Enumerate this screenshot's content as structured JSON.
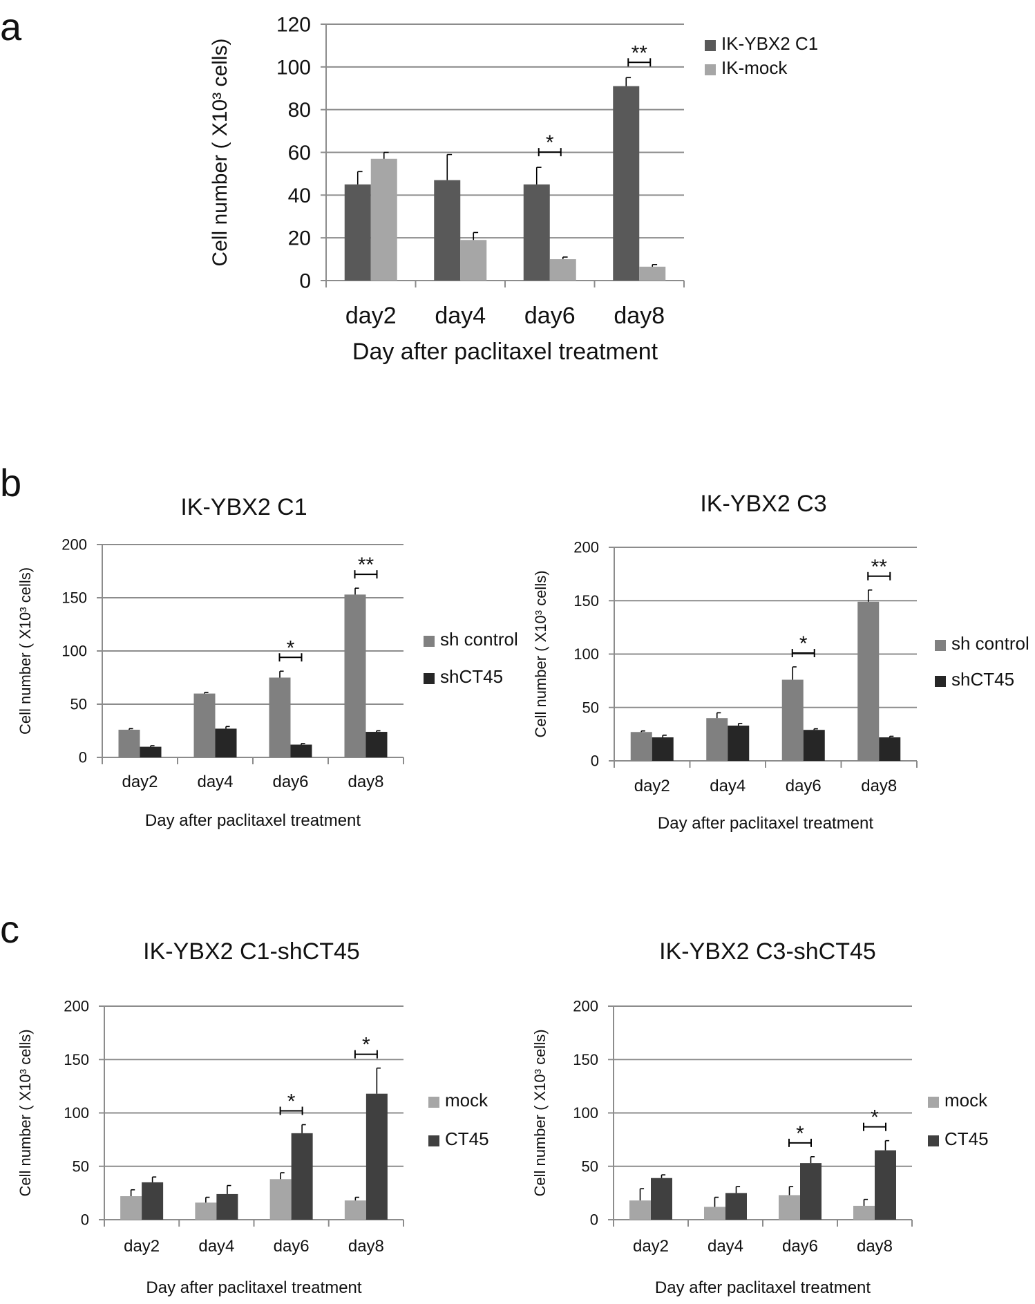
{
  "panels": [
    {
      "letter": "a"
    },
    {
      "letter": "b"
    },
    {
      "letter": "c"
    }
  ],
  "chart_data": [
    {
      "type": "bar",
      "panel": "a",
      "title": "",
      "categories": [
        "day2",
        "day4",
        "day6",
        "day8"
      ],
      "xlabel": "Day after paclitaxel treatment",
      "ylabel": "Cell number ( X10³ cells)",
      "ylim": [
        0,
        120
      ],
      "yticks": [
        0,
        20,
        40,
        60,
        80,
        100,
        120
      ],
      "grid": true,
      "legend_position": "top-right",
      "series": [
        {
          "name": "IK-YBX2 C1",
          "color": "#595959",
          "values": [
            45,
            47,
            45,
            91
          ],
          "errors": [
            6,
            12,
            8,
            4
          ]
        },
        {
          "name": "IK-mock",
          "color": "#a6a6a6",
          "values": [
            57,
            19,
            10,
            6.5
          ],
          "errors": [
            3,
            3.5,
            1,
            1
          ]
        }
      ],
      "annotations": [
        {
          "category": 2,
          "text": "*"
        },
        {
          "category": 3,
          "text": "**"
        }
      ]
    },
    {
      "type": "bar",
      "panel": "b",
      "title": "IK-YBX2 C1",
      "categories": [
        "day2",
        "day4",
        "day6",
        "day8"
      ],
      "xlabel": "Day after paclitaxel treatment",
      "ylabel": "Cell number ( X10³ cells)",
      "ylim": [
        0,
        200
      ],
      "yticks": [
        0,
        50,
        100,
        150,
        200
      ],
      "grid": true,
      "legend_position": "right",
      "series": [
        {
          "name": "sh control",
          "color": "#808080",
          "values": [
            26,
            60,
            75,
            153
          ],
          "errors": [
            1,
            1,
            6,
            6
          ]
        },
        {
          "name": "shCT45",
          "color": "#262626",
          "values": [
            10,
            27,
            12,
            24
          ],
          "errors": [
            1,
            2,
            1,
            1
          ]
        }
      ],
      "annotations": [
        {
          "category": 2,
          "text": "*"
        },
        {
          "category": 3,
          "text": "**"
        }
      ]
    },
    {
      "type": "bar",
      "panel": "b",
      "title": "IK-YBX2 C3",
      "categories": [
        "day2",
        "day4",
        "day6",
        "day8"
      ],
      "xlabel": "Day after paclitaxel treatment",
      "ylabel": "Cell number ( X10³ cells)",
      "ylim": [
        0,
        200
      ],
      "yticks": [
        0,
        50,
        100,
        150,
        200
      ],
      "grid": true,
      "legend_position": "right",
      "series": [
        {
          "name": "sh control",
          "color": "#808080",
          "values": [
            27,
            40,
            76,
            149
          ],
          "errors": [
            1,
            5,
            12,
            11
          ]
        },
        {
          "name": "shCT45",
          "color": "#262626",
          "values": [
            22,
            33,
            29,
            22
          ],
          "errors": [
            2,
            2,
            1,
            1
          ]
        }
      ],
      "annotations": [
        {
          "category": 2,
          "text": "*"
        },
        {
          "category": 3,
          "text": "**"
        }
      ]
    },
    {
      "type": "bar",
      "panel": "c",
      "title": "IK-YBX2 C1-shCT45",
      "categories": [
        "day2",
        "day4",
        "day6",
        "day8"
      ],
      "xlabel": "Day after paclitaxel treatment",
      "ylabel": "Cell number ( X10³ cells)",
      "ylim": [
        0,
        200
      ],
      "yticks": [
        0,
        50,
        100,
        150,
        200
      ],
      "grid": true,
      "legend_position": "right",
      "series": [
        {
          "name": "mock",
          "color": "#a6a6a6",
          "values": [
            22,
            16,
            38,
            18
          ],
          "errors": [
            6,
            5,
            6,
            3
          ]
        },
        {
          "name": "CT45",
          "color": "#404040",
          "values": [
            35,
            24,
            81,
            118
          ],
          "errors": [
            5,
            8,
            8,
            24
          ]
        }
      ],
      "annotations": [
        {
          "category": 2,
          "text": "*"
        },
        {
          "category": 3,
          "text": "*"
        }
      ]
    },
    {
      "type": "bar",
      "panel": "c",
      "title": "IK-YBX2 C3-shCT45",
      "categories": [
        "day2",
        "day4",
        "day6",
        "day8"
      ],
      "xlabel": "Day after paclitaxel treatment",
      "ylabel": "Cell number ( X10³ cells)",
      "ylim": [
        0,
        200
      ],
      "yticks": [
        0,
        50,
        100,
        150,
        200
      ],
      "grid": true,
      "legend_position": "right",
      "series": [
        {
          "name": "mock",
          "color": "#a6a6a6",
          "values": [
            18,
            12,
            23,
            13
          ],
          "errors": [
            11,
            9,
            8,
            6
          ]
        },
        {
          "name": "CT45",
          "color": "#404040",
          "values": [
            39,
            25,
            53,
            65
          ],
          "errors": [
            3,
            6,
            6,
            9
          ]
        }
      ],
      "annotations": [
        {
          "category": 2,
          "text": "*"
        },
        {
          "category": 3,
          "text": "*"
        }
      ]
    }
  ]
}
